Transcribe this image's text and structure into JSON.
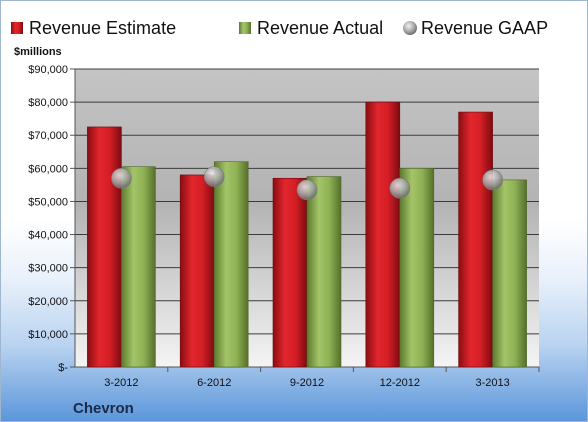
{
  "chart_data": {
    "type": "bar",
    "unit_label": "$millions",
    "company": "Chevron",
    "categories": [
      "3-2012",
      "6-2012",
      "9-2012",
      "12-2012",
      "3-2013"
    ],
    "series": [
      {
        "name": "Revenue Estimate",
        "kind": "bar",
        "color": "#d81f26",
        "values": [
          72500,
          58000,
          57000,
          80000,
          77000
        ]
      },
      {
        "name": "Revenue Actual",
        "kind": "bar",
        "color": "#8fb255",
        "values": [
          60500,
          62000,
          57500,
          60000,
          56500
        ]
      },
      {
        "name": "Revenue GAAP",
        "kind": "marker",
        "color": "#b8b8b8",
        "values": [
          57000,
          57500,
          53500,
          54000,
          56500
        ]
      }
    ],
    "ylim": [
      0,
      90000
    ],
    "yticks": [
      0,
      10000,
      20000,
      30000,
      40000,
      50000,
      60000,
      70000,
      80000,
      90000
    ],
    "ytick_labels": [
      "$-",
      "$10,000",
      "$20,000",
      "$30,000",
      "$40,000",
      "$50,000",
      "$60,000",
      "$70,000",
      "$80,000",
      "$90,000"
    ],
    "grid": true,
    "legend_position": "top"
  }
}
